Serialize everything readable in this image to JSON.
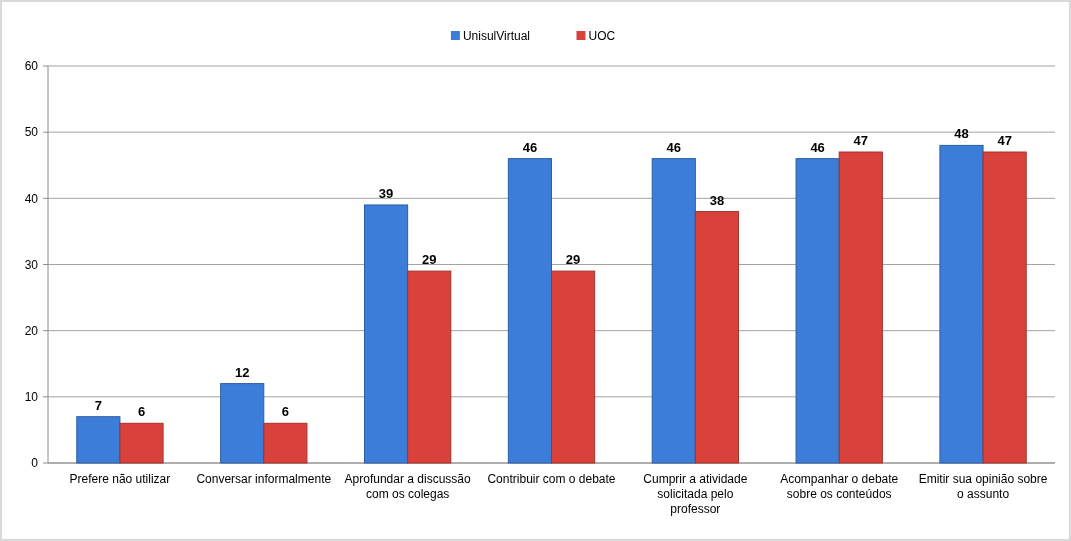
{
  "chart_data": {
    "type": "bar",
    "categories": [
      "Prefere não utilizar",
      "Conversar informalmente",
      "Aprofundar a discussão com os colegas",
      "Contribuir com o debate",
      "Cumprir a atividade solicitada pelo professor",
      "Acompanhar o debate sobre os conteúdos",
      "Emitir sua opinião sobre o assunto"
    ],
    "series": [
      {
        "name": "UnisulVirtual",
        "color": "#3b7dd8",
        "values": [
          7,
          12,
          39,
          46,
          46,
          46,
          48
        ]
      },
      {
        "name": "UOC",
        "color": "#d8423b",
        "values": [
          6,
          6,
          29,
          29,
          38,
          47,
          47
        ]
      }
    ],
    "ylim": [
      0,
      60
    ],
    "yticks": [
      0,
      10,
      20,
      30,
      40,
      50,
      60
    ],
    "grid": "y",
    "legend": "top",
    "data_labels": true
  }
}
